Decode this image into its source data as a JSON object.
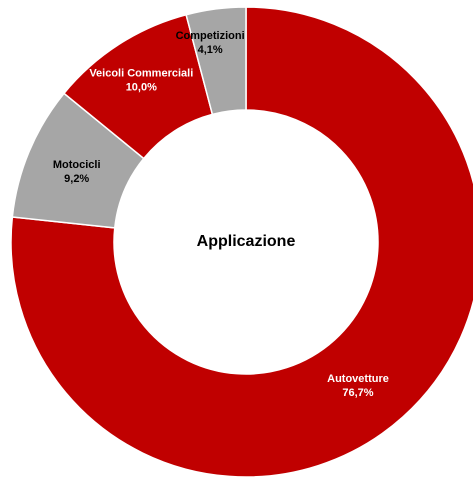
{
  "chart_data": {
    "type": "pie",
    "variant": "donut",
    "center_label": "Applicazione",
    "slices": [
      {
        "name": "Autovetture",
        "value": 76.7,
        "value_label": "76,7%",
        "color": "#c00000",
        "label_color": "#ffffff"
      },
      {
        "name": "Motocicli",
        "value": 9.2,
        "value_label": "9,2%",
        "color": "#a6a6a6",
        "label_color": "#000000"
      },
      {
        "name": "Veicoli Commerciali",
        "value": 10.0,
        "value_label": "10,0%",
        "color": "#c00000",
        "label_color": "#ffffff"
      },
      {
        "name": "Competizioni",
        "value": 4.1,
        "value_label": "4,1%",
        "color": "#a6a6a6",
        "label_color": "#000000"
      }
    ],
    "legend": false
  }
}
